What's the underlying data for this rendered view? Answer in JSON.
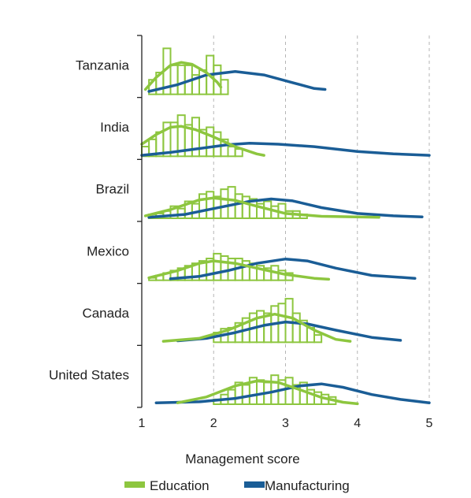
{
  "chart_data": {
    "type": "histogram-density",
    "xlabel": "Management score",
    "xlim": [
      1,
      5
    ],
    "x_ticks": [
      "1",
      "2",
      "3",
      "4",
      "5"
    ],
    "grid": "vertical dashed",
    "legend_placement": "bottom",
    "colors": {
      "Education": "#8dc63f",
      "Manufacturing": "#1a5d96"
    },
    "legend": [
      {
        "name": "Education",
        "color": "#8dc63f"
      },
      {
        "name": "Manufacturing",
        "color": "#1a5d96"
      }
    ],
    "panels": [
      {
        "country": "Tanzania",
        "education_hist": {
          "bin_start": 1.1,
          "bin_width": 0.1,
          "heights": [
            0.3,
            0.45,
            0.95,
            0.6,
            0.6,
            0.6,
            0.4,
            0.5,
            0.8,
            0.6,
            0.3
          ]
        },
        "education_curve": [
          [
            1.05,
            0.1
          ],
          [
            1.2,
            0.35
          ],
          [
            1.4,
            0.6
          ],
          [
            1.55,
            0.66
          ],
          [
            1.7,
            0.62
          ],
          [
            1.9,
            0.45
          ],
          [
            2.05,
            0.25
          ],
          [
            2.1,
            0.15
          ]
        ],
        "manufacturing_curve": [
          [
            1.1,
            0.06
          ],
          [
            1.5,
            0.2
          ],
          [
            1.9,
            0.4
          ],
          [
            2.3,
            0.47
          ],
          [
            2.7,
            0.4
          ],
          [
            3.1,
            0.24
          ],
          [
            3.4,
            0.12
          ],
          [
            3.55,
            0.1
          ]
        ]
      },
      {
        "country": "India",
        "education_hist": {
          "bin_start": 1.0,
          "bin_width": 0.1,
          "heights": [
            0.2,
            0.35,
            0.5,
            0.7,
            0.7,
            0.85,
            0.65,
            0.8,
            0.55,
            0.6,
            0.5,
            0.35,
            0.2,
            0.15
          ]
        },
        "education_curve": [
          [
            1.0,
            0.25
          ],
          [
            1.2,
            0.45
          ],
          [
            1.4,
            0.6
          ],
          [
            1.55,
            0.62
          ],
          [
            1.75,
            0.55
          ],
          [
            2.0,
            0.4
          ],
          [
            2.3,
            0.2
          ],
          [
            2.6,
            0.05
          ],
          [
            2.7,
            0.02
          ]
        ],
        "manufacturing_curve": [
          [
            1.0,
            0.02
          ],
          [
            1.4,
            0.08
          ],
          [
            1.8,
            0.16
          ],
          [
            2.2,
            0.24
          ],
          [
            2.5,
            0.27
          ],
          [
            2.9,
            0.25
          ],
          [
            3.4,
            0.2
          ],
          [
            4.0,
            0.1
          ],
          [
            4.5,
            0.05
          ],
          [
            5.0,
            0.02
          ]
        ]
      },
      {
        "country": "Brazil",
        "education_hist": {
          "bin_start": 1.1,
          "bin_width": 0.1,
          "heights": [
            0.08,
            0.1,
            0.15,
            0.25,
            0.2,
            0.35,
            0.3,
            0.5,
            0.55,
            0.45,
            0.6,
            0.65,
            0.5,
            0.45,
            0.4,
            0.3,
            0.35,
            0.25,
            0.3,
            0.15,
            0.15,
            0.08
          ]
        },
        "education_curve": [
          [
            1.05,
            0.05
          ],
          [
            1.4,
            0.18
          ],
          [
            1.8,
            0.38
          ],
          [
            2.0,
            0.42
          ],
          [
            2.3,
            0.37
          ],
          [
            2.6,
            0.25
          ],
          [
            3.0,
            0.1
          ],
          [
            3.5,
            0.04
          ],
          [
            4.3,
            0.02
          ]
        ],
        "manufacturing_curve": [
          [
            1.1,
            0.02
          ],
          [
            1.6,
            0.08
          ],
          [
            2.0,
            0.2
          ],
          [
            2.5,
            0.35
          ],
          [
            2.8,
            0.4
          ],
          [
            3.1,
            0.36
          ],
          [
            3.5,
            0.22
          ],
          [
            4.0,
            0.1
          ],
          [
            4.5,
            0.05
          ],
          [
            4.9,
            0.03
          ]
        ]
      },
      {
        "country": "Mexico",
        "education_hist": {
          "bin_start": 1.1,
          "bin_width": 0.1,
          "heights": [
            0.05,
            0.1,
            0.15,
            0.2,
            0.25,
            0.3,
            0.35,
            0.4,
            0.45,
            0.55,
            0.5,
            0.45,
            0.45,
            0.4,
            0.35,
            0.3,
            0.25,
            0.3,
            0.2,
            0.15
          ]
        },
        "education_curve": [
          [
            1.1,
            0.05
          ],
          [
            1.5,
            0.2
          ],
          [
            1.8,
            0.35
          ],
          [
            2.0,
            0.4
          ],
          [
            2.3,
            0.35
          ],
          [
            2.6,
            0.25
          ],
          [
            3.0,
            0.12
          ],
          [
            3.4,
            0.04
          ],
          [
            3.6,
            0.02
          ]
        ],
        "manufacturing_curve": [
          [
            1.4,
            0.03
          ],
          [
            1.8,
            0.08
          ],
          [
            2.2,
            0.2
          ],
          [
            2.6,
            0.35
          ],
          [
            3.0,
            0.44
          ],
          [
            3.3,
            0.4
          ],
          [
            3.7,
            0.25
          ],
          [
            4.2,
            0.1
          ],
          [
            4.8,
            0.04
          ]
        ]
      },
      {
        "country": "Canada",
        "education_hist": {
          "bin_start": 2.0,
          "bin_width": 0.1,
          "heights": [
            0.2,
            0.28,
            0.3,
            0.4,
            0.5,
            0.6,
            0.65,
            0.6,
            0.75,
            0.8,
            0.9,
            0.6,
            0.45,
            0.3,
            0.15
          ]
        },
        "education_curve": [
          [
            1.3,
            0.02
          ],
          [
            1.8,
            0.08
          ],
          [
            2.2,
            0.25
          ],
          [
            2.6,
            0.5
          ],
          [
            2.85,
            0.58
          ],
          [
            3.1,
            0.5
          ],
          [
            3.4,
            0.25
          ],
          [
            3.7,
            0.06
          ],
          [
            3.9,
            0.02
          ]
        ],
        "manufacturing_curve": [
          [
            1.5,
            0.03
          ],
          [
            1.9,
            0.08
          ],
          [
            2.3,
            0.2
          ],
          [
            2.7,
            0.35
          ],
          [
            3.0,
            0.42
          ],
          [
            3.3,
            0.38
          ],
          [
            3.7,
            0.25
          ],
          [
            4.2,
            0.1
          ],
          [
            4.6,
            0.04
          ]
        ]
      },
      {
        "country": "United States",
        "education_hist": {
          "bin_start": 2.0,
          "bin_width": 0.1,
          "heights": [
            0.1,
            0.2,
            0.3,
            0.45,
            0.4,
            0.55,
            0.5,
            0.45,
            0.6,
            0.5,
            0.55,
            0.4,
            0.45,
            0.3,
            0.25,
            0.2,
            0.15
          ]
        },
        "education_curve": [
          [
            1.5,
            0.03
          ],
          [
            1.9,
            0.15
          ],
          [
            2.3,
            0.38
          ],
          [
            2.6,
            0.48
          ],
          [
            2.9,
            0.45
          ],
          [
            3.2,
            0.3
          ],
          [
            3.5,
            0.14
          ],
          [
            3.8,
            0.04
          ],
          [
            4.0,
            0.01
          ]
        ],
        "manufacturing_curve": [
          [
            1.2,
            0.03
          ],
          [
            1.8,
            0.05
          ],
          [
            2.3,
            0.12
          ],
          [
            2.8,
            0.25
          ],
          [
            3.2,
            0.38
          ],
          [
            3.5,
            0.42
          ],
          [
            3.8,
            0.35
          ],
          [
            4.2,
            0.2
          ],
          [
            4.6,
            0.1
          ],
          [
            5.0,
            0.03
          ]
        ]
      }
    ]
  }
}
